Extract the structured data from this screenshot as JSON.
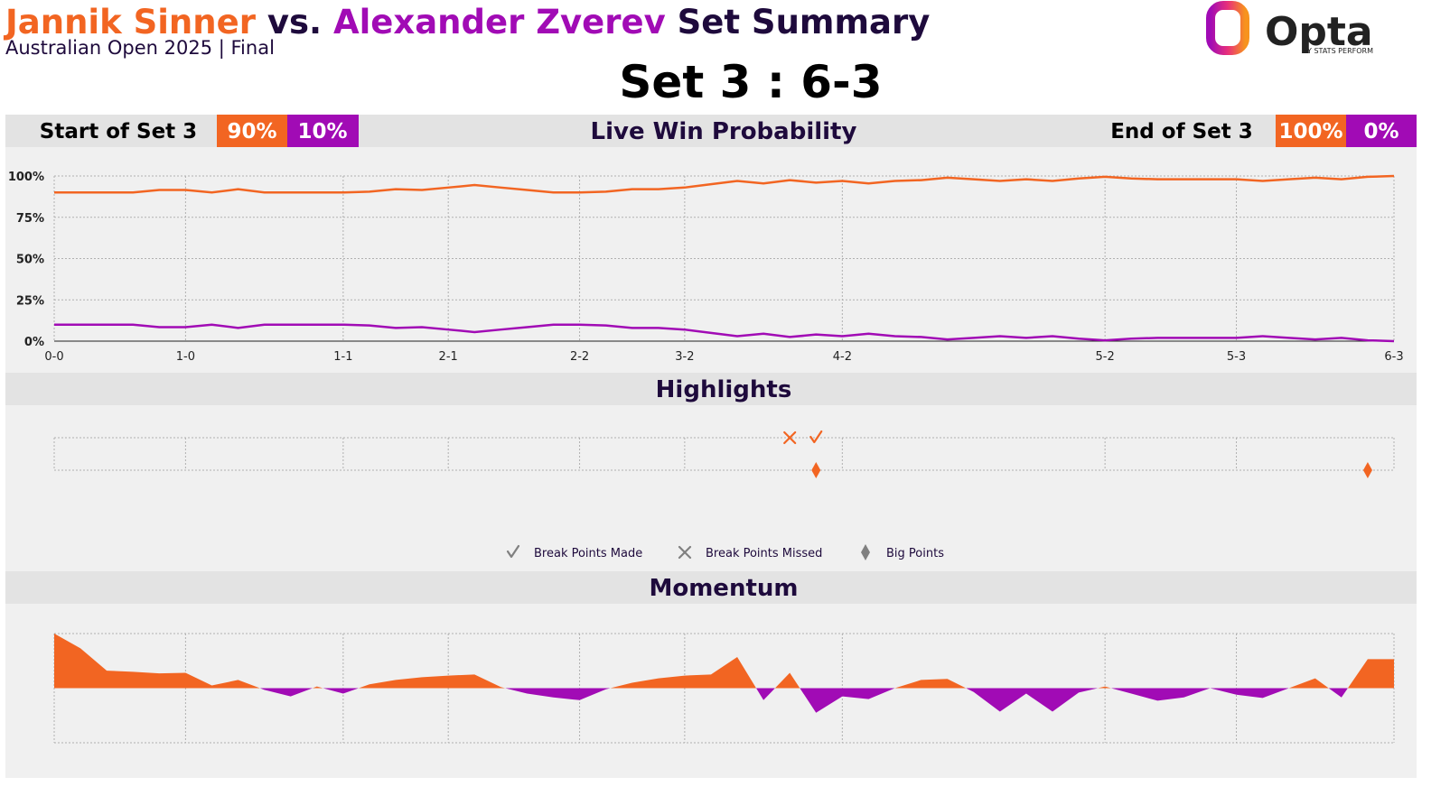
{
  "header": {
    "player1": "Jannik Sinner",
    "vs": "vs.",
    "player2": "Alexander Zverev",
    "title_end": "Set Summary",
    "subtitle": "Australian Open 2025 | Final",
    "set_score": "Set 3 : 6-3",
    "logo": "Opta",
    "logo_sub": "BY STATS PERFORM",
    "player1_color": "#f26522",
    "player2_color": "#a10bb5"
  },
  "summary": {
    "start_label": "Start of Set 3",
    "start_values": [
      "90%",
      "10%"
    ],
    "end_label": "End of Set 3",
    "end_values": [
      "100%",
      "0%"
    ]
  },
  "chart_data": [
    {
      "type": "line",
      "title": "Live Win Probability",
      "x": [
        0,
        1,
        2,
        3,
        4,
        5,
        6,
        7,
        8,
        9,
        10,
        11,
        12,
        13,
        14,
        15,
        16,
        17,
        18,
        19,
        20,
        21,
        22,
        23,
        24,
        25,
        26,
        27,
        28,
        29,
        30,
        31,
        32,
        33,
        34,
        35,
        36,
        37,
        38,
        39,
        40,
        41,
        42,
        43,
        44,
        45,
        46,
        47,
        48,
        49,
        50,
        51
      ],
      "series": [
        {
          "color": "#f26522",
          "values": [
            90,
            90,
            90,
            90,
            91.5,
            91.5,
            90,
            92,
            90,
            90,
            90,
            90,
            90.5,
            92,
            91.5,
            93,
            94.5,
            93,
            91.5,
            90,
            90,
            90.5,
            92,
            92,
            93,
            95,
            97,
            95.5,
            97.5,
            96,
            97,
            95.5,
            97,
            97.5,
            99,
            98,
            97,
            98,
            97,
            98.5,
            99.5,
            98.5,
            98,
            98,
            98,
            98,
            97,
            98,
            99,
            98,
            99.5,
            100
          ]
        },
        {
          "color": "#a10bb5",
          "values": [
            10,
            10,
            10,
            10,
            8.5,
            8.5,
            10,
            8,
            10,
            10,
            10,
            10,
            9.5,
            8,
            8.5,
            7,
            5.5,
            7,
            8.5,
            10,
            10,
            9.5,
            8,
            8,
            7,
            5,
            3,
            4.5,
            2.5,
            4,
            3,
            4.5,
            3,
            2.5,
            1,
            2,
            3,
            2,
            3,
            1.5,
            0.5,
            1.5,
            2,
            2,
            2,
            2,
            3,
            2,
            1,
            2,
            0.5,
            0
          ]
        }
      ],
      "xlim": [
        0,
        51
      ],
      "xticks": [
        {
          "value": 0,
          "label": "0-0"
        },
        {
          "value": 5,
          "label": "1-0"
        },
        {
          "value": 11,
          "label": "1-1"
        },
        {
          "value": 15,
          "label": "2-1"
        },
        {
          "value": 20,
          "label": "2-2"
        },
        {
          "value": 24,
          "label": "3-2"
        },
        {
          "value": 30,
          "label": "4-2"
        },
        {
          "value": 40,
          "label": "5-2"
        },
        {
          "value": 45,
          "label": "5-3"
        },
        {
          "value": 51,
          "label": "6-3"
        }
      ],
      "ylim": [
        0,
        100
      ],
      "yticks": [
        {
          "value": 0,
          "label": "0%"
        },
        {
          "value": 25,
          "label": "25%"
        },
        {
          "value": 50,
          "label": "50%"
        },
        {
          "value": 75,
          "label": "75%"
        },
        {
          "value": 100,
          "label": "100%"
        }
      ],
      "grid": true
    },
    {
      "type": "events",
      "title": "Highlights",
      "xlim": [
        0,
        51
      ],
      "xticks": [
        0,
        5,
        11,
        15,
        20,
        24,
        30,
        40,
        45,
        51
      ],
      "legend_color": "#808080",
      "series": [
        {
          "name": "Break Points Made",
          "marker": "check",
          "color": "#f26522",
          "x": [
            29
          ]
        },
        {
          "name": "Break Points Missed",
          "marker": "cross",
          "color": "#f26522",
          "x": [
            28
          ]
        },
        {
          "name": "Big Points",
          "marker": "diamond",
          "color": "#f26522",
          "x": [
            29,
            50
          ]
        }
      ]
    },
    {
      "type": "area",
      "title": "Momentum",
      "x": [
        0,
        1,
        2,
        3,
        4,
        5,
        6,
        7,
        8,
        9,
        10,
        11,
        12,
        13,
        14,
        15,
        16,
        17,
        18,
        19,
        20,
        21,
        22,
        23,
        24,
        25,
        26,
        27,
        28,
        29,
        30,
        31,
        32,
        33,
        34,
        35,
        36,
        37,
        38,
        39,
        40,
        41,
        42,
        43,
        44,
        45,
        46,
        47,
        48,
        49,
        50,
        51
      ],
      "values": [
        100,
        73,
        32,
        30,
        27,
        28,
        5,
        15,
        -3,
        -15,
        3,
        -10,
        7,
        15,
        20,
        23,
        25,
        2,
        -10,
        -17,
        -22,
        -2,
        10,
        18,
        23,
        25,
        57,
        -22,
        28,
        -45,
        -15,
        -20,
        0,
        15,
        17,
        -7,
        -43,
        -10,
        -43,
        -8,
        3,
        -10,
        -23,
        -17,
        0,
        -12,
        -18,
        0,
        18,
        -17,
        53,
        53
      ],
      "color_positive": "#f26522",
      "color_negative": "#a10bb5",
      "xlim": [
        0,
        51
      ],
      "ylim": [
        -100,
        100
      ],
      "xticks": [
        0,
        5,
        11,
        15,
        20,
        24,
        30,
        40,
        45,
        51
      ],
      "grid": true
    }
  ]
}
